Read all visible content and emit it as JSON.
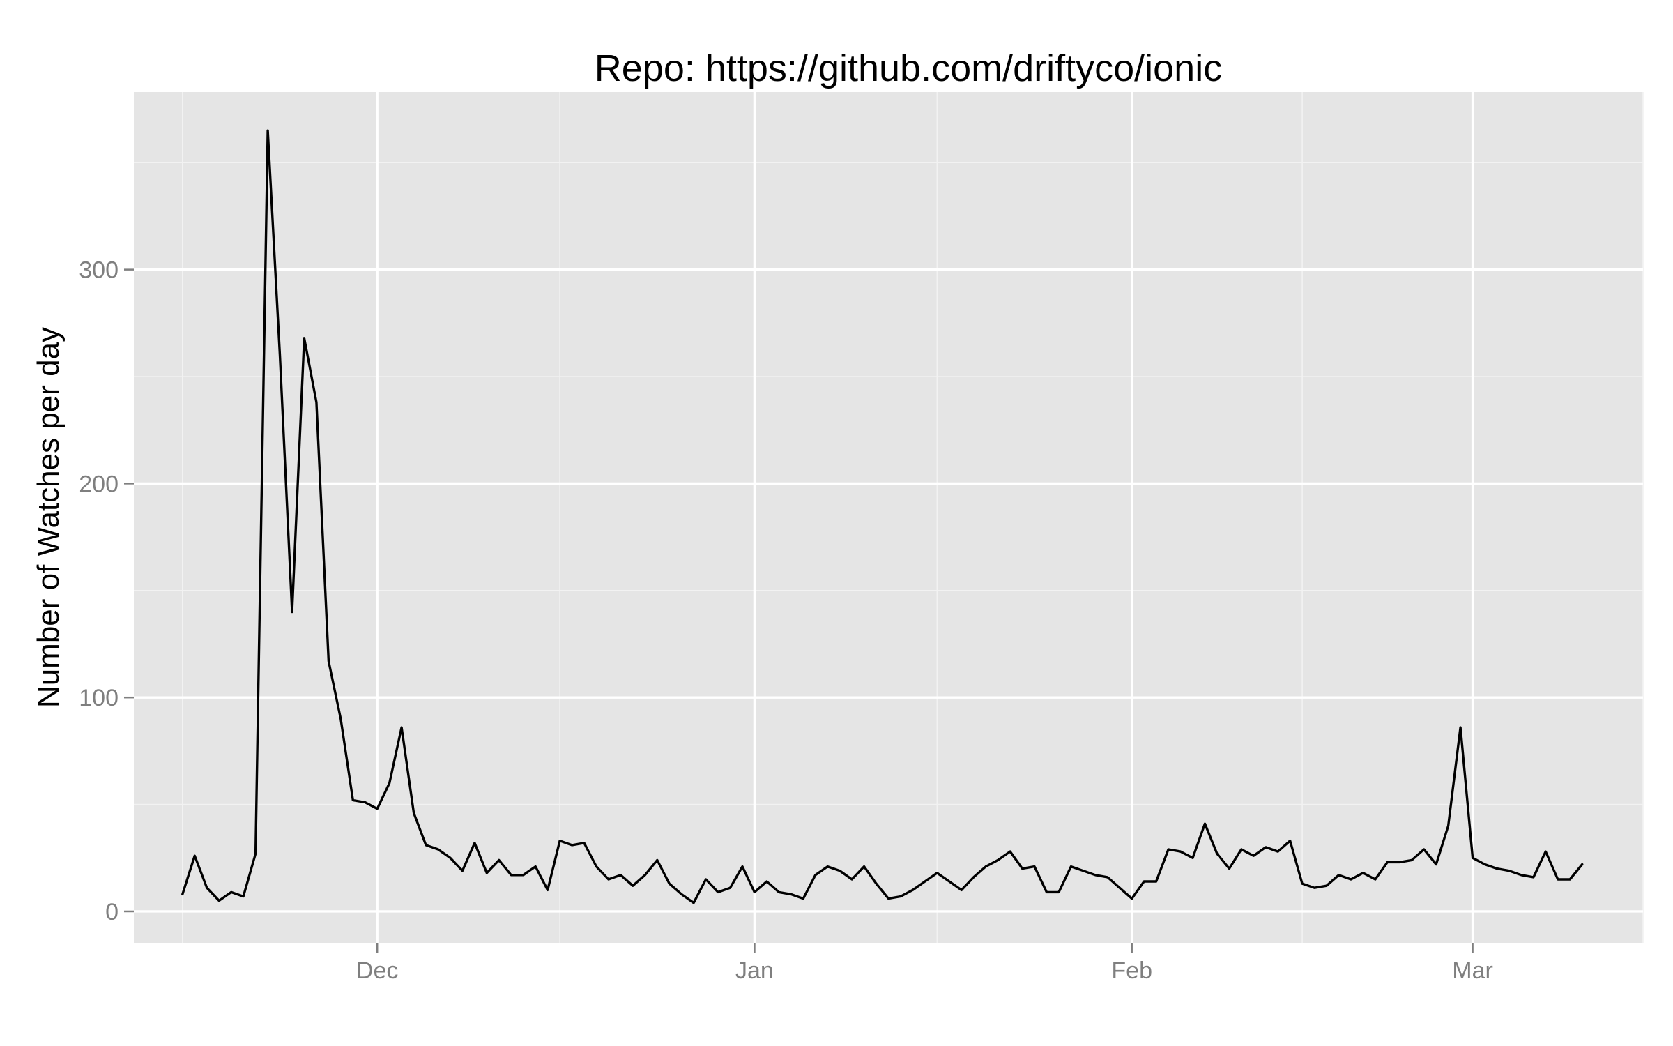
{
  "chart_data": {
    "type": "line",
    "title": "Repo: https://github.com/driftyco/ionic",
    "xlabel": "",
    "ylabel": "Number of Watches per day",
    "x_ticks": [
      {
        "label": "Dec",
        "date": "2013-12-01"
      },
      {
        "label": "Jan",
        "date": "2014-01-01"
      },
      {
        "label": "Feb",
        "date": "2014-02-01"
      },
      {
        "label": "Mar",
        "date": "2014-03-01"
      }
    ],
    "y_ticks": [
      0,
      100,
      200,
      300
    ],
    "xlim": [
      "2013-11-11",
      "2014-03-15"
    ],
    "ylim": [
      -15,
      383
    ],
    "grid": true,
    "legend": "none",
    "background_color": "#e5e5e5",
    "line_color": "#000000",
    "series": [
      {
        "x": [
          "2013-11-15",
          "2013-11-16",
          "2013-11-17",
          "2013-11-18",
          "2013-11-19",
          "2013-11-20",
          "2013-11-21",
          "2013-11-22",
          "2013-11-23",
          "2013-11-24",
          "2013-11-25",
          "2013-11-26",
          "2013-11-27",
          "2013-11-28",
          "2013-11-29",
          "2013-11-30",
          "2013-12-01",
          "2013-12-02",
          "2013-12-03",
          "2013-12-04",
          "2013-12-05",
          "2013-12-06",
          "2013-12-07",
          "2013-12-08",
          "2013-12-09",
          "2013-12-10",
          "2013-12-11",
          "2013-12-12",
          "2013-12-13",
          "2013-12-14",
          "2013-12-15",
          "2013-12-16",
          "2013-12-17",
          "2013-12-18",
          "2013-12-19",
          "2013-12-20",
          "2013-12-21",
          "2013-12-22",
          "2013-12-23",
          "2013-12-24",
          "2013-12-25",
          "2013-12-26",
          "2013-12-27",
          "2013-12-28",
          "2013-12-29",
          "2013-12-30",
          "2013-12-31",
          "2014-01-01",
          "2014-01-02",
          "2014-01-03",
          "2014-01-04",
          "2014-01-05",
          "2014-01-06",
          "2014-01-07",
          "2014-01-08",
          "2014-01-09",
          "2014-01-10",
          "2014-01-11",
          "2014-01-12",
          "2014-01-13",
          "2014-01-14",
          "2014-01-15",
          "2014-01-16",
          "2014-01-17",
          "2014-01-18",
          "2014-01-19",
          "2014-01-20",
          "2014-01-21",
          "2014-01-22",
          "2014-01-23",
          "2014-01-24",
          "2014-01-25",
          "2014-01-26",
          "2014-01-27",
          "2014-01-28",
          "2014-01-29",
          "2014-01-30",
          "2014-01-31",
          "2014-02-01",
          "2014-02-02",
          "2014-02-03",
          "2014-02-04",
          "2014-02-05",
          "2014-02-06",
          "2014-02-07",
          "2014-02-08",
          "2014-02-09",
          "2014-02-10",
          "2014-02-11",
          "2014-02-12",
          "2014-02-13",
          "2014-02-14",
          "2014-02-15",
          "2014-02-16",
          "2014-02-17",
          "2014-02-18",
          "2014-02-19",
          "2014-02-20",
          "2014-02-21",
          "2014-02-22",
          "2014-02-23",
          "2014-02-24",
          "2014-02-25",
          "2014-02-26",
          "2014-02-27",
          "2014-02-28",
          "2014-03-01",
          "2014-03-02",
          "2014-03-03",
          "2014-03-04",
          "2014-03-05",
          "2014-03-06",
          "2014-03-07",
          "2014-03-08",
          "2014-03-09",
          "2014-03-10"
        ],
        "values": [
          8,
          26,
          11,
          5,
          9,
          7,
          27,
          365,
          260,
          140,
          268,
          238,
          117,
          90,
          52,
          51,
          48,
          60,
          86,
          46,
          31,
          29,
          25,
          19,
          32,
          18,
          24,
          17,
          17,
          21,
          10,
          33,
          31,
          32,
          21,
          15,
          17,
          12,
          17,
          24,
          13,
          8,
          4,
          15,
          9,
          11,
          21,
          9,
          14,
          9,
          8,
          6,
          17,
          21,
          19,
          15,
          21,
          13,
          6,
          7,
          10,
          14,
          18,
          14,
          10,
          16,
          21,
          24,
          28,
          20,
          21,
          9,
          9,
          21,
          19,
          17,
          16,
          11,
          6,
          14,
          14,
          29,
          28,
          25,
          41,
          27,
          20,
          29,
          26,
          30,
          28,
          33,
          13,
          11,
          12,
          17,
          15,
          18,
          15,
          23,
          23,
          24,
          29,
          22,
          40,
          86,
          25,
          22,
          20,
          19,
          17,
          16,
          28,
          15,
          15,
          22
        ]
      }
    ]
  }
}
